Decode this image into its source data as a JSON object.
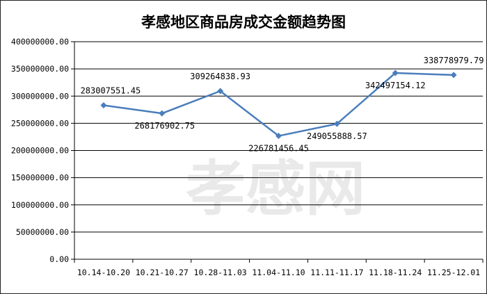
{
  "chart_data": {
    "type": "line",
    "title": "孝感地区商品房成交金额趋势图",
    "categories": [
      "10.14-10.20",
      "10.21-10.27",
      "10.28-11.03",
      "11.04-11.10",
      "11.11-11.17",
      "11.18-11.24",
      "11.25-12.01"
    ],
    "values": [
      283007551.45,
      268176902.75,
      309264838.93,
      226781456.45,
      249055888.57,
      342497154.12,
      338778979.79
    ],
    "value_labels": [
      "283007551.45",
      "268176902.75",
      "309264838.93",
      "226781456.45",
      "249055888.57",
      "342497154.12",
      "338778979.79"
    ],
    "ylim": [
      0,
      400000000
    ],
    "y_ticks": [
      "0.00",
      "50000000.00",
      "100000000.00",
      "150000000.00",
      "200000000.00",
      "250000000.00",
      "300000000.00",
      "350000000.00",
      "400000000.00"
    ],
    "grid": true,
    "line_color": "#4a7ebb",
    "watermark": "孝感网"
  }
}
